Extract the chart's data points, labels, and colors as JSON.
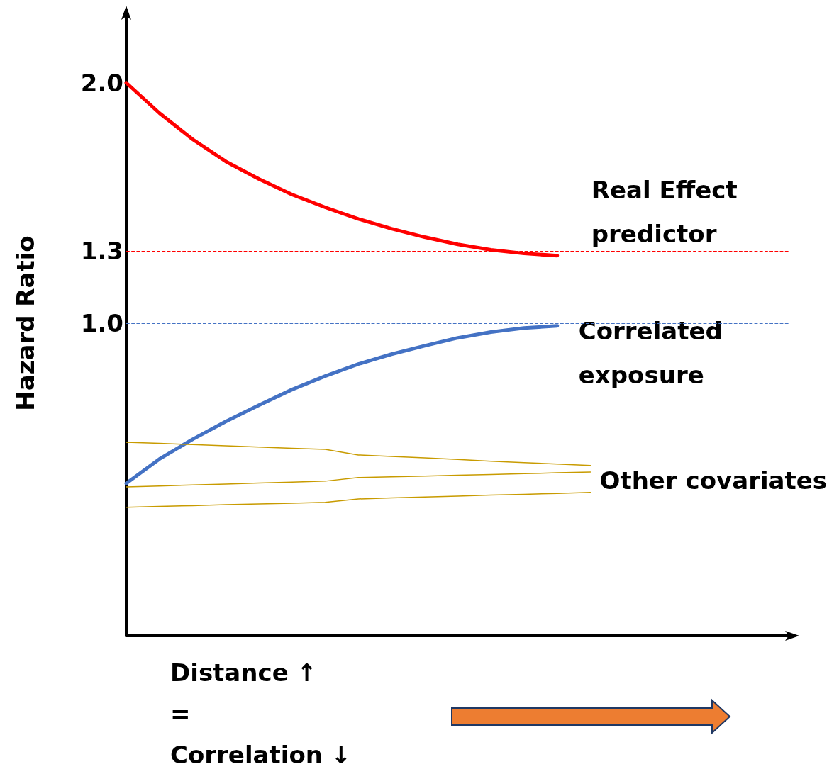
{
  "chart_data": {
    "type": "line",
    "ylabel": "Hazard Ratio",
    "xlabel": "Distance ↑\n=\nCorrelation ↓",
    "categories": [
      null,
      null,
      null,
      null,
      null,
      null,
      null,
      null,
      null,
      null,
      null,
      null,
      null,
      null,
      null,
      null,
      null,
      null,
      null,
      null,
      null
    ],
    "ylim": [
      -0.3,
      2.3
    ],
    "yticks": [
      {
        "value": 1.0,
        "label": "1.0"
      },
      {
        "value": 1.3,
        "label": "1.3"
      },
      {
        "value": 2.0,
        "label": "2.0"
      }
    ],
    "tick_labels": "y",
    "grid": false,
    "legend": false,
    "marker": "none",
    "line_style": "solid",
    "series": [
      {
        "name": "Real Effect predictor",
        "color": "#ff0000",
        "values": [
          2.0,
          1.874,
          1.765,
          1.673,
          1.6,
          1.535,
          1.482,
          1.434,
          1.393,
          1.358,
          1.328,
          1.305,
          1.29,
          1.281,
          null,
          null,
          null,
          null,
          null,
          null,
          null
        ]
      },
      {
        "name": "Correlated exposure",
        "color": "#4472c4",
        "values": [
          0.334,
          0.435,
          0.517,
          0.591,
          0.659,
          0.724,
          0.78,
          0.83,
          0.871,
          0.906,
          0.939,
          0.963,
          0.98,
          0.989,
          null,
          null,
          null,
          null,
          null,
          null,
          null
        ]
      },
      {
        "color": "#c89b00",
        "values": [
          0.505,
          0.5,
          0.495,
          0.49,
          0.485,
          0.48,
          0.475,
          0.452,
          0.446,
          0.44,
          0.433,
          0.426,
          0.42,
          0.414,
          0.408,
          null,
          null,
          null,
          null,
          null,
          null
        ]
      },
      {
        "name": "Other covariates",
        "color": "#c89b00",
        "values": [
          0.319,
          0.323,
          0.327,
          0.331,
          0.335,
          0.339,
          0.343,
          0.358,
          0.361,
          0.364,
          0.368,
          0.371,
          0.374,
          0.378,
          0.381,
          null,
          null,
          null,
          null,
          null,
          null
        ]
      },
      {
        "color": "#c89b00",
        "values": [
          0.234,
          0.238,
          0.241,
          0.245,
          0.248,
          0.251,
          0.255,
          0.269,
          0.273,
          0.277,
          0.281,
          0.285,
          0.288,
          0.292,
          0.296,
          null,
          null,
          null,
          null,
          null,
          null
        ]
      }
    ],
    "ref_lines": [
      {
        "axis": "y",
        "value": 1.3,
        "color": "#ff0000",
        "line_style": "dashed"
      },
      {
        "axis": "y",
        "value": 1.0,
        "color": "#4472c4",
        "line_style": "dashed"
      }
    ]
  }
}
